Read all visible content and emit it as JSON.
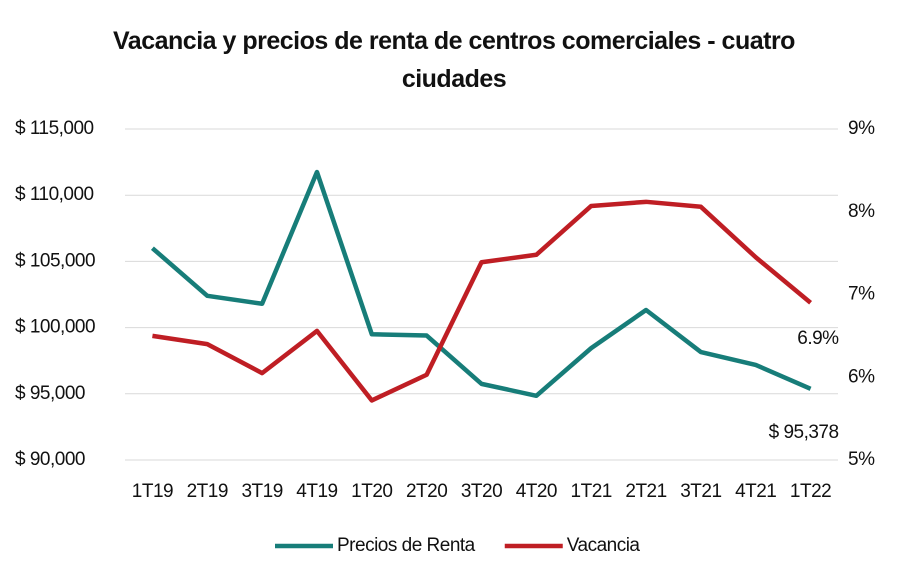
{
  "chart_data": {
    "type": "line",
    "title": "Vacancia y precios de renta de centros comerciales - cuatro ciudades",
    "categories": [
      "1T19",
      "2T19",
      "3T19",
      "4T19",
      "1T20",
      "2T20",
      "3T20",
      "4T20",
      "1T21",
      "2T21",
      "3T21",
      "4T21",
      "1T22"
    ],
    "series": [
      {
        "name": "Precios de Renta",
        "color": "#177d79",
        "values": [
          106000,
          102400,
          101800,
          111750,
          99500,
          99400,
          95750,
          94850,
          98450,
          101330,
          98150,
          97180,
          95378
        ],
        "value_labels": [
          null,
          null,
          null,
          null,
          null,
          null,
          null,
          null,
          null,
          null,
          null,
          null,
          "$ 95,378"
        ]
      },
      {
        "name": "Vacancia",
        "color": "#bf1e24",
        "axis": "y2",
        "values": [
          6.5,
          6.4,
          6.05,
          6.56,
          5.72,
          6.03,
          7.39,
          7.48,
          8.07,
          8.12,
          8.06,
          7.45,
          6.9
        ],
        "value_labels": [
          null,
          null,
          null,
          null,
          null,
          null,
          null,
          null,
          null,
          null,
          null,
          null,
          "6.9%"
        ]
      }
    ],
    "ylim": [
      90000,
      115000
    ],
    "yticks": [
      {
        "value": 90000,
        "label": "$ 90,000"
      },
      {
        "value": 95000,
        "label": "$ 95,000"
      },
      {
        "value": 100000,
        "label": "$ 100,000"
      },
      {
        "value": 105000,
        "label": "$ 105,000"
      },
      {
        "value": 110000,
        "label": "$ 110,000"
      },
      {
        "value": 115000,
        "label": "$ 115,000"
      }
    ],
    "y2lim": [
      5,
      9
    ],
    "y2ticks": [
      {
        "value": 5,
        "label": "5%"
      },
      {
        "value": 6,
        "label": "6%"
      },
      {
        "value": 7,
        "label": "7%"
      },
      {
        "value": 8,
        "label": "8%"
      },
      {
        "value": 9,
        "label": "9%"
      }
    ],
    "grid": true,
    "legend": "bottom"
  }
}
